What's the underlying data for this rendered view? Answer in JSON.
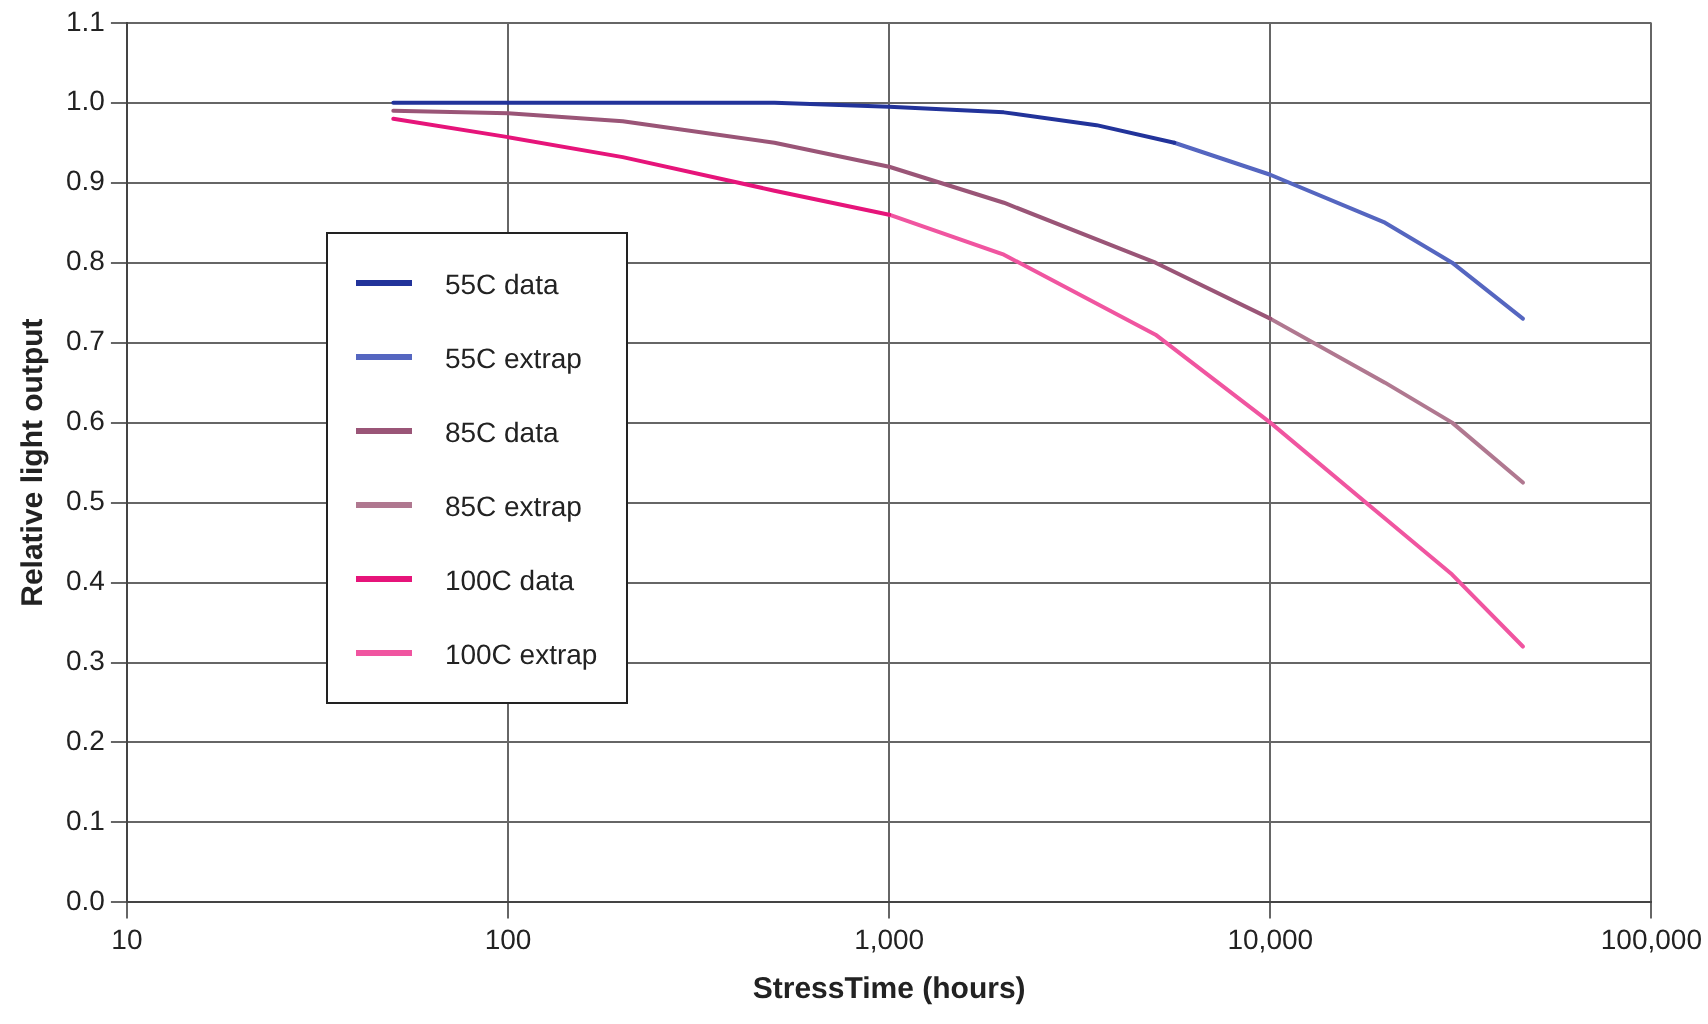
{
  "chart_data": {
    "type": "line",
    "xlabel": "StressTime (hours)",
    "ylabel": "Relative light output",
    "log": "x",
    "xlim": [
      10,
      100000
    ],
    "xticks": [
      {
        "value": 10,
        "label": "10"
      },
      {
        "value": 100,
        "label": "100"
      },
      {
        "value": 1000,
        "label": "1,000"
      },
      {
        "value": 10000,
        "label": "10,000"
      },
      {
        "value": 100000,
        "label": "100,000"
      }
    ],
    "ylim": [
      0,
      1.1
    ],
    "yticks": [
      {
        "value": 0,
        "label": "0.0"
      },
      {
        "value": 0.1,
        "label": "0.1"
      },
      {
        "value": 0.2,
        "label": "0.2"
      },
      {
        "value": 0.3,
        "label": "0.3"
      },
      {
        "value": 0.4,
        "label": "0.4"
      },
      {
        "value": 0.5,
        "label": "0.5"
      },
      {
        "value": 0.6,
        "label": "0.6"
      },
      {
        "value": 0.7,
        "label": "0.7"
      },
      {
        "value": 0.8,
        "label": "0.8"
      },
      {
        "value": 0.9,
        "label": "0.9"
      },
      {
        "value": 1,
        "label": "1.0"
      },
      {
        "value": 1.1,
        "label": "1.1"
      }
    ],
    "grid": true,
    "legend": "left",
    "marker": "none",
    "series": [
      {
        "name": "55C data",
        "color": "#22339a",
        "x": [
          50,
          200,
          500,
          1000,
          2000,
          3500,
          5600
        ],
        "values": [
          1.0,
          1.0,
          1.0,
          0.995,
          0.988,
          0.972,
          0.95
        ]
      },
      {
        "name": "55C extrap",
        "color": "#5566c0",
        "x": [
          5600,
          10000,
          20000,
          30000,
          46000
        ],
        "values": [
          0.95,
          0.91,
          0.85,
          0.8,
          0.73
        ]
      },
      {
        "name": "85C data",
        "color": "#9a5577",
        "x": [
          50,
          100,
          200,
          500,
          1000,
          2000,
          5000,
          10000
        ],
        "values": [
          0.99,
          0.987,
          0.977,
          0.95,
          0.92,
          0.875,
          0.8,
          0.73
        ]
      },
      {
        "name": "85C extrap",
        "color": "#b07890",
        "x": [
          10000,
          20000,
          30000,
          46000
        ],
        "values": [
          0.73,
          0.65,
          0.6,
          0.525
        ]
      },
      {
        "name": "100C data",
        "color": "#e6147a",
        "x": [
          50,
          100,
          200,
          500,
          1000
        ],
        "values": [
          0.98,
          0.957,
          0.932,
          0.89,
          0.86
        ]
      },
      {
        "name": "100C extrap",
        "color": "#f055a0",
        "x": [
          1000,
          2000,
          5000,
          10000,
          20000,
          30000,
          46000
        ],
        "values": [
          0.86,
          0.81,
          0.71,
          0.6,
          0.48,
          0.41,
          0.32
        ]
      }
    ]
  }
}
